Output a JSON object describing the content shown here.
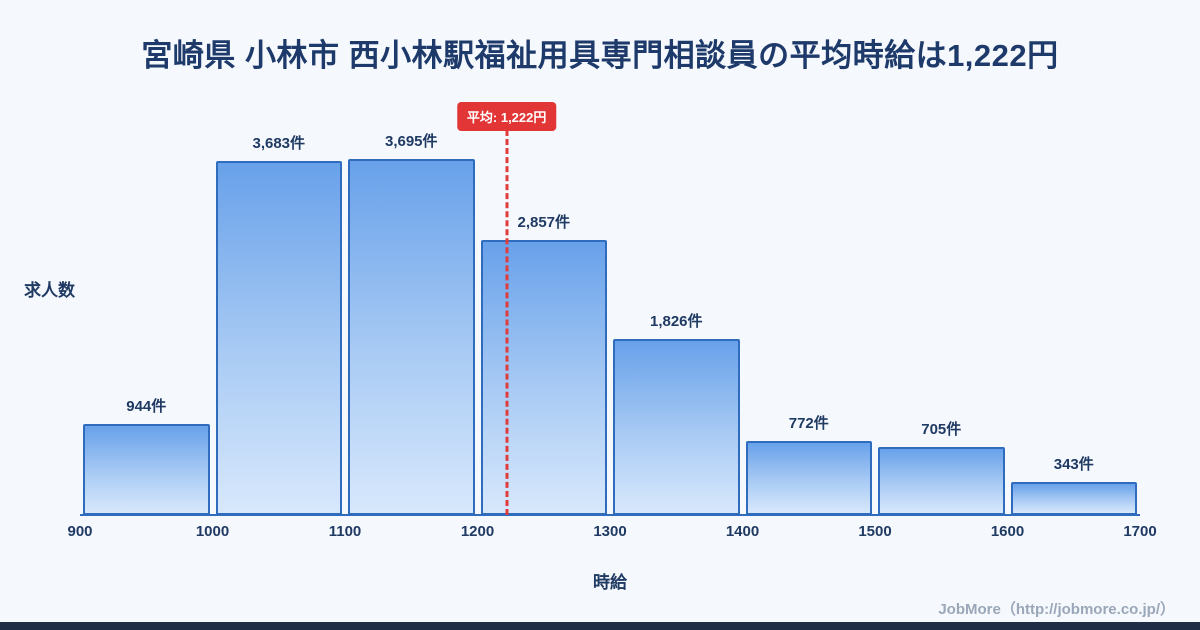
{
  "page": {
    "footer": "JobMore（http://jobmore.co.jp/）"
  },
  "chart_data": {
    "type": "bar",
    "title": "宮崎県 小林市 西小林駅福祉用具専門相談員の平均時給は1,222円",
    "xlabel": "時給",
    "ylabel": "求人数",
    "x_ticks": [
      "900",
      "1000",
      "1100",
      "1200",
      "1300",
      "1400",
      "1500",
      "1600",
      "1700"
    ],
    "bins": [
      [
        900,
        1000
      ],
      [
        1000,
        1100
      ],
      [
        1100,
        1200
      ],
      [
        1200,
        1300
      ],
      [
        1300,
        1400
      ],
      [
        1400,
        1500
      ],
      [
        1500,
        1600
      ],
      [
        1600,
        1700
      ]
    ],
    "values": [
      944,
      3683,
      3695,
      2857,
      1826,
      772,
      705,
      343
    ],
    "bar_labels": [
      "944件",
      "3,683件",
      "3,695件",
      "2,857件",
      "1,826件",
      "772件",
      "705件",
      "343件"
    ],
    "average": 1222,
    "average_label": "平均: 1,222円",
    "x_range": [
      900,
      1700
    ],
    "ylim": [
      0,
      4000
    ],
    "grid": false,
    "legend": "none",
    "colors": {
      "background": "#f5f8fc",
      "title_text": "#1d3a6b",
      "bar_gradient_top": "#68a1ea",
      "bar_gradient_bottom": "#d8e8fc",
      "bar_border": "#2f6cbe",
      "average_line": "#e03c3c",
      "average_badge_bg": "#e23636",
      "footer_text": "#9aa7b8",
      "bottom_strip": "#1e2d45"
    }
  }
}
